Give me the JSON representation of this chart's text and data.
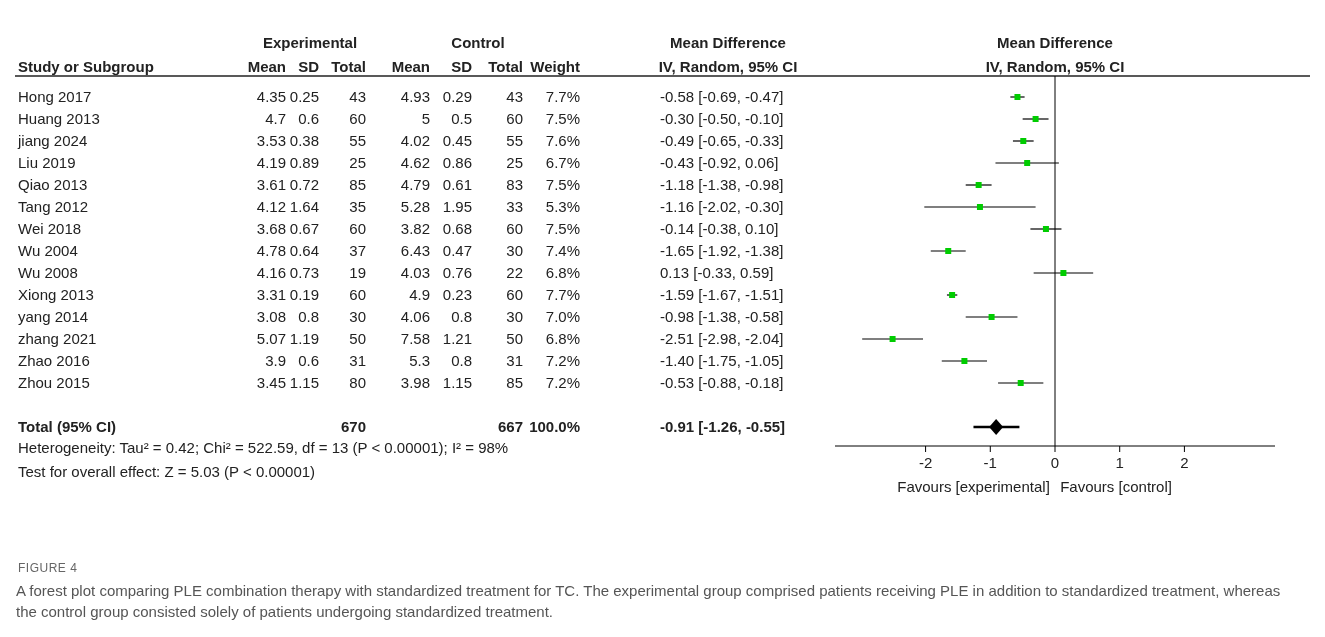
{
  "chart_data": [
    {
      "type": "other",
      "ylabel": "Study or Subgroup",
      "categories": [
        "Hong 2017",
        "Huang 2013",
        "jiang 2024",
        "Liu 2019",
        "Qiao 2013",
        "Tang 2012",
        "Wei 2018",
        "Wu 2004",
        "Wu 2008",
        "Xiong 2013",
        "yang 2014",
        "zhang 2021",
        "Zhao 2016",
        "Zhou 2015",
        null,
        "Total (95% CI)"
      ],
      "series": [
        {
          "name": "Mean",
          "values": [
            4.35,
            4.7,
            3.53,
            4.19,
            3.61,
            4.12,
            3.68,
            4.78,
            4.16,
            3.31,
            3.08,
            5.07,
            3.9,
            3.45,
            null,
            null
          ]
        },
        {
          "name": "SD",
          "values": [
            0.25,
            0.6,
            0.38,
            0.89,
            0.72,
            1.64,
            0.67,
            0.64,
            0.73,
            0.19,
            0.8,
            1.19,
            0.6,
            1.15,
            null,
            null
          ]
        },
        {
          "name": "Total",
          "values": [
            43,
            60,
            55,
            25,
            85,
            35,
            60,
            37,
            19,
            60,
            30,
            50,
            31,
            80,
            null,
            670
          ]
        },
        {
          "name": "Mean",
          "values": [
            4.93,
            5,
            4.02,
            4.62,
            4.79,
            5.28,
            3.82,
            6.43,
            4.03,
            4.9,
            4.06,
            7.58,
            5.3,
            3.98,
            null,
            null
          ]
        },
        {
          "name": "SD",
          "values": [
            0.29,
            0.5,
            0.45,
            0.86,
            0.61,
            1.95,
            0.68,
            0.47,
            0.76,
            0.23,
            0.8,
            1.21,
            0.8,
            1.15,
            null,
            null
          ]
        },
        {
          "name": "Total",
          "values": [
            43,
            60,
            55,
            25,
            83,
            33,
            60,
            30,
            22,
            60,
            30,
            50,
            31,
            85,
            null,
            667
          ]
        },
        {
          "name": "Weight",
          "values": [
            7.7,
            7.5,
            7.6,
            6.7,
            7.5,
            5.3,
            7.5,
            7.4,
            6.8,
            7.7,
            7.0,
            6.8,
            7.2,
            7.2,
            null,
            100.0
          ],
          "value_labels": [
            "7.7%",
            "7.5%",
            "7.6%",
            "6.7%",
            "7.5%",
            "5.3%",
            "7.5%",
            "7.4%",
            "6.8%",
            "7.7%",
            "7.0%",
            "6.8%",
            "7.2%",
            "7.2%",
            null,
            "100.0%"
          ]
        },
        {
          "values": [
            null,
            null,
            null,
            null,
            null,
            null,
            null,
            null,
            null,
            null,
            null,
            null,
            null,
            null,
            null,
            -0.91
          ],
          "value_labels": [
            null,
            null,
            null,
            null,
            null,
            null,
            null,
            null,
            null,
            null,
            null,
            null,
            null,
            null,
            null,
            "-0.91 [-1.26, -0.55]"
          ]
        }
      ],
      "data_labels": true,
      "annotations": [
        "Experimental",
        "Control",
        "Mean Difference",
        "IV, Random, 95% CI",
        "Heterogeneity: Tau² = 0.42; Chi² = 522.59, df = 13 (P < 0.00001); I² = 98%",
        "Test for overall effect: Z = 5.03 (P < 0.00001)"
      ]
    },
    {
      "type": "scatter",
      "orientation": "horizontal",
      "title": "Mean Difference",
      "subtitle": "IV, Random, 95% CI",
      "categories": [
        null,
        null,
        null,
        null,
        null,
        null,
        null,
        null,
        null,
        null,
        null,
        null,
        null,
        null,
        null,
        null
      ],
      "series": [
        {
          "type": "scatter",
          "marker": "square",
          "color": "#00cc00",
          "values": [
            -0.58,
            -0.3,
            -0.49,
            -0.43,
            -1.18,
            -1.16,
            -0.14,
            -1.65,
            0.13,
            -1.59,
            -0.98,
            -2.51,
            -1.4,
            -0.53,
            null,
            null
          ],
          "errors": [
            [
              -0.69,
              -0.47
            ],
            [
              -0.5,
              -0.1
            ],
            [
              -0.65,
              -0.33
            ],
            [
              -0.92,
              0.06
            ],
            [
              -1.38,
              -0.98
            ],
            [
              -2.02,
              -0.3
            ],
            [
              -0.38,
              0.1
            ],
            [
              -1.92,
              -1.38
            ],
            [
              -0.33,
              0.59
            ],
            [
              -1.67,
              -1.51
            ],
            [
              -1.38,
              -0.58
            ],
            [
              -2.98,
              -2.04
            ],
            [
              -1.75,
              -1.05
            ],
            [
              -0.88,
              -0.18
            ],
            null,
            null
          ],
          "value_labels": [
            "-0.58 [-0.69, -0.47]",
            "-0.30 [-0.50, -0.10]",
            "-0.49 [-0.65, -0.33]",
            "-0.43 [-0.92, 0.06]",
            "-1.18 [-1.38, -0.98]",
            "-1.16 [-2.02, -0.30]",
            "-0.14 [-0.38, 0.10]",
            "-1.65 [-1.92, -1.38]",
            "0.13 [-0.33, 0.59]",
            "-1.59 [-1.67, -1.51]",
            "-0.98 [-1.38, -0.58]",
            "-2.51 [-2.98, -2.04]",
            "-1.40 [-1.75, -1.05]",
            "-0.53 [-0.88, -0.18]",
            null,
            null
          ]
        },
        {
          "type": "scatter",
          "marker": "diamond",
          "color": "#000000",
          "values": [
            null,
            null,
            null,
            null,
            null,
            null,
            null,
            null,
            null,
            null,
            null,
            null,
            null,
            null,
            null,
            -0.91
          ],
          "errors": [
            null,
            null,
            null,
            null,
            null,
            null,
            null,
            null,
            null,
            null,
            null,
            null,
            null,
            null,
            null,
            [
              -1.26,
              -0.55
            ]
          ]
        }
      ],
      "xlim": [
        -3.4,
        3.4
      ],
      "xticks": [
        -2,
        -1,
        0,
        1,
        2
      ],
      "tick_labels": "x",
      "ref_lines": [
        {
          "axis": "x",
          "value": 0,
          "color": "#000000"
        }
      ],
      "annotations": [
        "Favours [experimental]",
        "Favours [control]",
        "FIGURE 4",
        "A forest plot comparing PLE combination therapy with standardized treatment for TC. The experimental group comprised patients receiving PLE in addition to standardized treatment, whereas the control group consisted solely of patients undergoing standardized treatment."
      ]
    }
  ]
}
